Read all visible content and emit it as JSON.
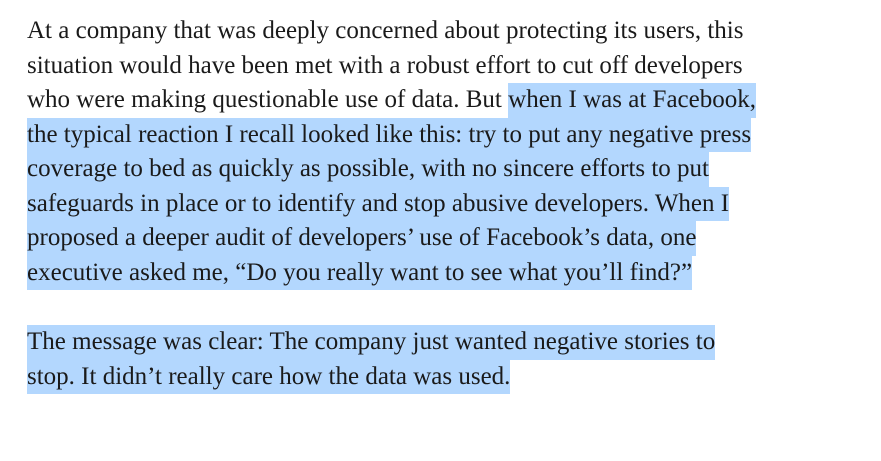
{
  "paragraphs": [
    {
      "lines": [
        {
          "segments": [
            {
              "text": "At a company that was deeply concerned about protecting its users, this",
              "selected": false
            }
          ]
        },
        {
          "segments": [
            {
              "text": "situation would have been met with a robust effort to cut off developers",
              "selected": false
            }
          ]
        },
        {
          "segments": [
            {
              "text": "who were making questionable use of data. But ",
              "selected": false
            },
            {
              "text": "when I was at Facebook,",
              "selected": true
            }
          ]
        },
        {
          "segments": [
            {
              "text": "the typical reaction I recall looked like this: try to put any negative press",
              "selected": true
            }
          ]
        },
        {
          "segments": [
            {
              "text": "coverage to bed as quickly as possible, with no sincere efforts to put",
              "selected": true
            }
          ]
        },
        {
          "segments": [
            {
              "text": "safeguards in place or to identify and stop abusive developers. When I",
              "selected": true
            }
          ]
        },
        {
          "segments": [
            {
              "text": "proposed a deeper audit of developers’ use of Facebook’s data, one",
              "selected": true
            }
          ]
        },
        {
          "segments": [
            {
              "text": "executive asked me, “Do you really want to see what you’ll find?”",
              "selected": true
            }
          ]
        }
      ]
    },
    {
      "lines": [
        {
          "segments": [
            {
              "text": "The message was clear: The company just wanted negative stories to",
              "selected": true
            }
          ]
        },
        {
          "segments": [
            {
              "text": "stop. It didn’t really care how the data was used.",
              "selected": true
            }
          ]
        }
      ]
    }
  ]
}
